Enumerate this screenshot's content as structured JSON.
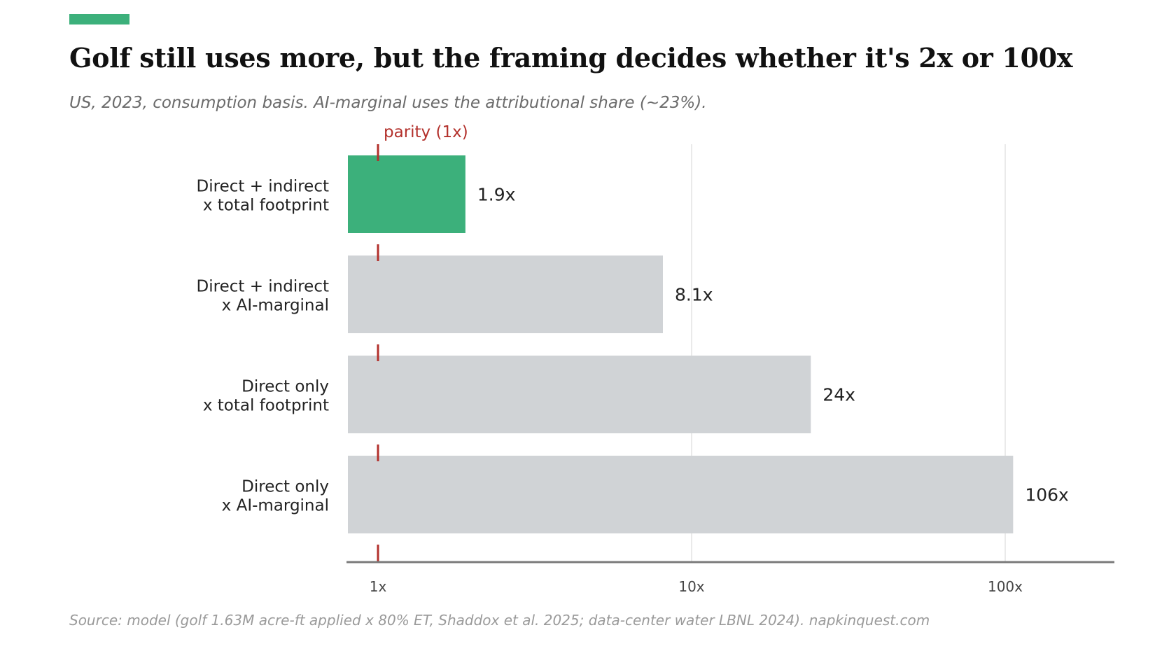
{
  "header": {
    "title": "Golf still uses more, but the framing decides whether it's 2x or 100x",
    "subtitle": "US, 2023, consumption basis. AI-marginal uses the attributional share (~23%).",
    "accent_color": "#3cb07b"
  },
  "footer": {
    "source": "Source: model (golf 1.63M acre-ft applied x 80% ET, Shaddox et al. 2025; data-center water LBNL 2024). napkinquest.com"
  },
  "chart_data": {
    "type": "bar",
    "orientation": "horizontal",
    "scale": "log",
    "xlim": [
      1,
      100
    ],
    "categories": [
      [
        "Direct + indirect",
        "x total footprint"
      ],
      [
        "Direct + indirect",
        "x AI-marginal"
      ],
      [
        "Direct only",
        "x total footprint"
      ],
      [
        "Direct only",
        "x AI-marginal"
      ]
    ],
    "values": [
      1.9,
      8.1,
      24,
      106
    ],
    "value_labels": [
      "1.9x",
      "8.1x",
      "24x",
      "106x"
    ],
    "highlight_index": 0,
    "bar_colors": {
      "highlight": "#3cb07b",
      "default": "#d0d3d6"
    },
    "ticks": [
      {
        "value": 1,
        "label": "1x"
      },
      {
        "value": 10,
        "label": "10x"
      },
      {
        "value": 100,
        "label": "100x"
      }
    ],
    "reference_line": {
      "value": 1,
      "label": "parity (1x)",
      "color": "#b3312c"
    },
    "grid": true
  }
}
